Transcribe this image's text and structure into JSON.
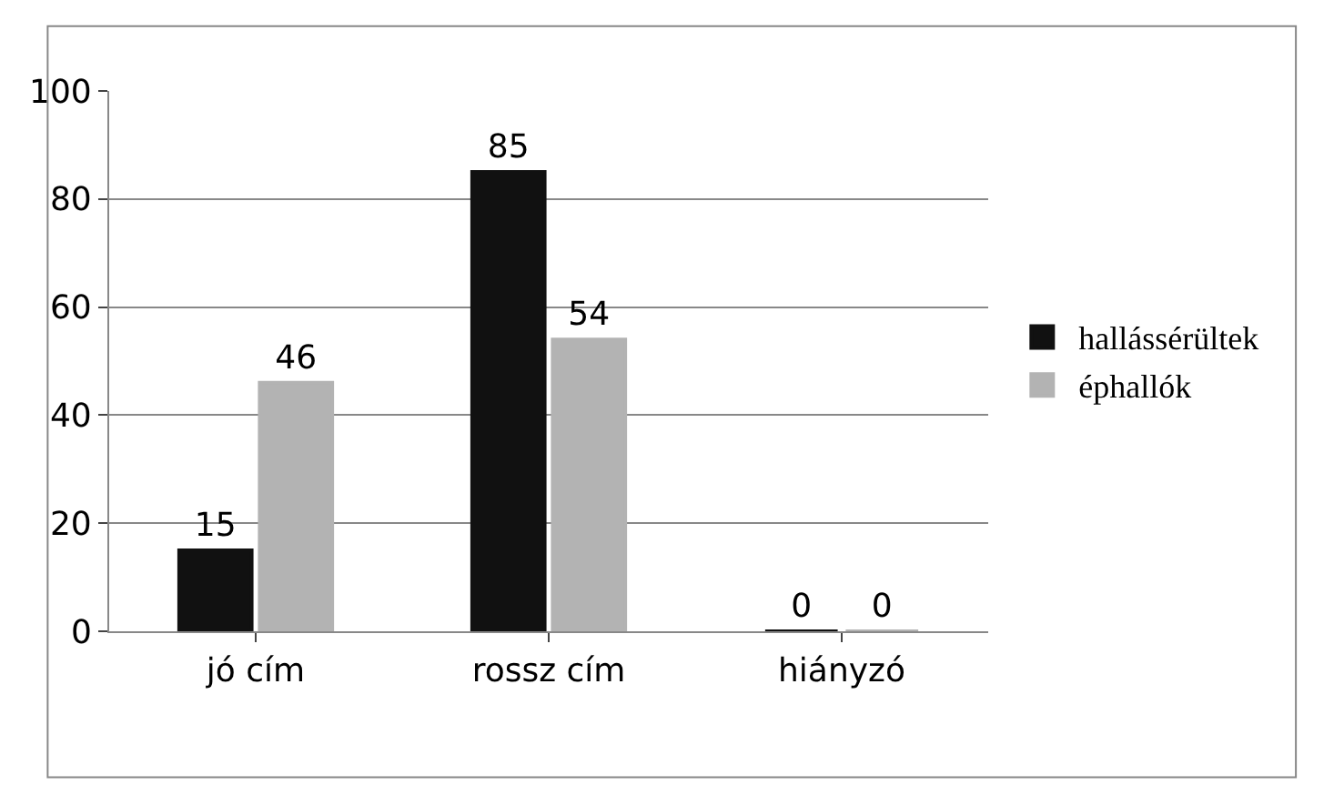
{
  "chart_data": {
    "type": "bar",
    "categories": [
      "jó cím",
      "rossz cím",
      "hiányzó"
    ],
    "series": [
      {
        "name": "hallássérültek",
        "color": "#111111",
        "values": [
          15,
          85,
          0
        ]
      },
      {
        "name": "éphallók",
        "color": "#b3b3b3",
        "values": [
          46,
          54,
          0
        ]
      }
    ],
    "ylim": [
      0,
      100
    ],
    "yticks": [
      0,
      20,
      40,
      60,
      80,
      100
    ],
    "grid": "y",
    "legend": "right",
    "data_labels": true
  }
}
